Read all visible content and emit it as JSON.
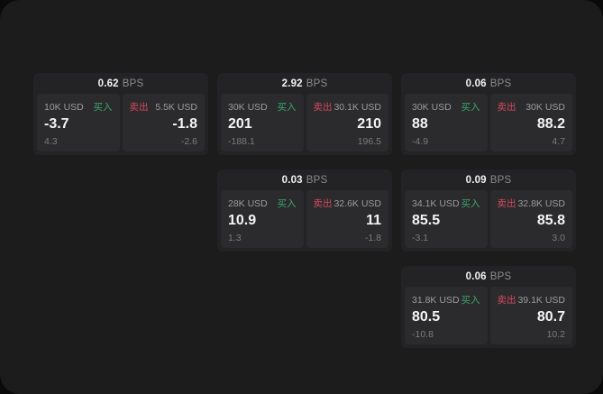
{
  "labels": {
    "bps_unit": "BPS",
    "buy": "买入",
    "sell": "卖出"
  },
  "colors": {
    "buy": "#3aa76d",
    "sell": "#d2495f",
    "surface": "#1c1c1d",
    "card": "#232325",
    "panel": "#2b2b2d"
  },
  "cards": [
    {
      "bps": "0.62",
      "buy": {
        "size": "10K USD",
        "price": "-3.7",
        "delta": "4.3"
      },
      "sell": {
        "size": "5.5K USD",
        "price": "-1.8",
        "delta": "-2.6"
      }
    },
    {
      "bps": "2.92",
      "buy": {
        "size": "30K USD",
        "price": "201",
        "delta": "-188.1"
      },
      "sell": {
        "size": "30.1K USD",
        "price": "210",
        "delta": "196.5"
      }
    },
    {
      "bps": "0.06",
      "buy": {
        "size": "30K USD",
        "price": "88",
        "delta": "-4.9"
      },
      "sell": {
        "size": "30K USD",
        "price": "88.2",
        "delta": "4.7"
      }
    },
    {
      "bps": "0.03",
      "buy": {
        "size": "28K USD",
        "price": "10.9",
        "delta": "1.3"
      },
      "sell": {
        "size": "32.6K USD",
        "price": "11",
        "delta": "-1.8"
      }
    },
    {
      "bps": "0.09",
      "buy": {
        "size": "34.1K USD",
        "price": "85.5",
        "delta": "-3.1"
      },
      "sell": {
        "size": "32.8K USD",
        "price": "85.8",
        "delta": "3.0"
      }
    },
    {
      "bps": "0.06",
      "buy": {
        "size": "31.8K USD",
        "price": "80.5",
        "delta": "-10.8"
      },
      "sell": {
        "size": "39.1K USD",
        "price": "80.7",
        "delta": "10.2"
      }
    }
  ]
}
